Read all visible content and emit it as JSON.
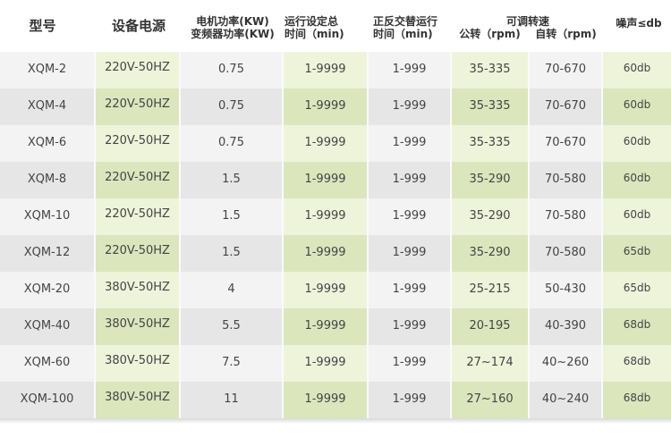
{
  "headers": {
    "model": "型号",
    "power_supply": "设备电源",
    "motor_power_1": "电机功率(KW)",
    "motor_power_2": "变频器功率(KW)",
    "run_time_1": "运行设定总",
    "run_time_2": "时间（min)",
    "alt_time_1": "正反交替运行",
    "alt_time_2": "时间（min)",
    "speed": "可调转速",
    "revolution": "公转（rpm)",
    "rotation": "自转（rpm)",
    "noise": "噪声≤db"
  },
  "colors": {
    "gray_light": "#f3f3f3",
    "gray_dark": "#e6e6e6",
    "green_light": "#eef4da",
    "green_dark": "#dbe6bd"
  },
  "rows": [
    [
      "XQM-2",
      "220V-50HZ",
      "0.75",
      "1-9999",
      "1-999",
      "35-335",
      "70-670",
      "60db"
    ],
    [
      "XQM-4",
      "220V-50HZ",
      "0.75",
      "1-9999",
      "1-999",
      "35-335",
      "70-670",
      "60db"
    ],
    [
      "XQM-6",
      "220V-50HZ",
      "0.75",
      "1-9999",
      "1-999",
      "35-335",
      "70-670",
      "60db"
    ],
    [
      "XQM-8",
      "220V-50HZ",
      "1.5",
      "1-9999",
      "1-999",
      "35-290",
      "70-580",
      "60db"
    ],
    [
      "XQM-10",
      "220V-50HZ",
      "1.5",
      "1-9999",
      "1-999",
      "35-290",
      "70-580",
      "60db"
    ],
    [
      "XQM-12",
      "220V-50HZ",
      "1.5",
      "1-9999",
      "1-999",
      "35-290",
      "70-580",
      "65db"
    ],
    [
      "XQM-20",
      "380V-50HZ",
      "4",
      "1-9999",
      "1-999",
      "25-215",
      "50-430",
      "65db"
    ],
    [
      "XQM-40",
      "380V-50HZ",
      "5.5",
      "1-9999",
      "1-999",
      "20-195",
      "40-390",
      "68db"
    ],
    [
      "XQM-60",
      "380V-50HZ",
      "7.5",
      "1-9999",
      "1-999",
      "27~174",
      "40~260",
      "68db"
    ],
    [
      "XQM-100",
      "380V-50HZ",
      "11",
      "1-9999",
      "1-999",
      "27~160",
      "40~240",
      "68db"
    ]
  ]
}
